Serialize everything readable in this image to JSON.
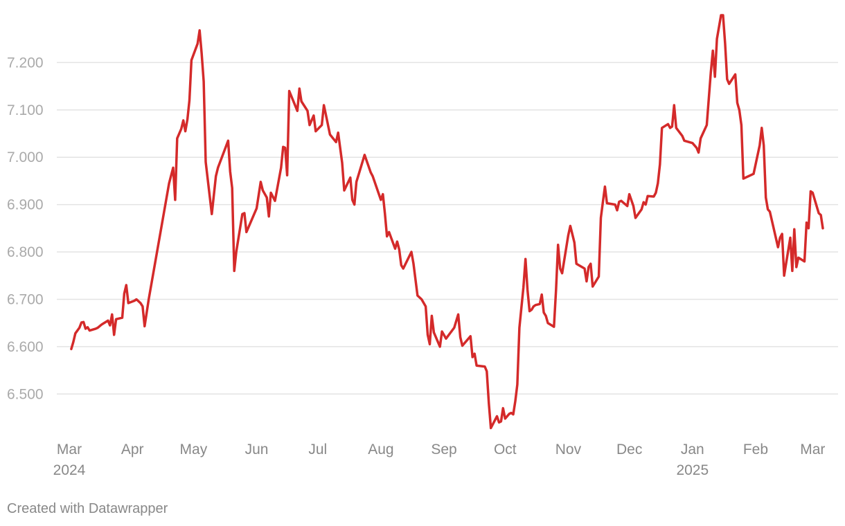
{
  "chart_data": {
    "type": "line",
    "title": "",
    "xlabel": "",
    "ylabel": "",
    "ylim": [
      6.42,
      7.3
    ],
    "yticks": [
      {
        "value": 6.5,
        "label": "6.500"
      },
      {
        "value": 6.6,
        "label": "6.600"
      },
      {
        "value": 6.7,
        "label": "6.700"
      },
      {
        "value": 6.8,
        "label": "6.800"
      },
      {
        "value": 6.9,
        "label": "6.900"
      },
      {
        "value": 7.0,
        "label": "7.000"
      },
      {
        "value": 7.1,
        "label": "7.100"
      },
      {
        "value": 7.2,
        "label": "7.200"
      }
    ],
    "xticks": [
      {
        "date": "2024-03-01",
        "label": "Mar",
        "year": "2024"
      },
      {
        "date": "2024-04-01",
        "label": "Apr",
        "year": ""
      },
      {
        "date": "2024-05-01",
        "label": "May",
        "year": ""
      },
      {
        "date": "2024-06-01",
        "label": "Jun",
        "year": ""
      },
      {
        "date": "2024-07-01",
        "label": "Jul",
        "year": ""
      },
      {
        "date": "2024-08-01",
        "label": "Aug",
        "year": ""
      },
      {
        "date": "2024-09-01",
        "label": "Sep",
        "year": ""
      },
      {
        "date": "2024-10-01",
        "label": "Oct",
        "year": ""
      },
      {
        "date": "2024-11-01",
        "label": "Nov",
        "year": ""
      },
      {
        "date": "2024-12-01",
        "label": "Dec",
        "year": ""
      },
      {
        "date": "2025-01-01",
        "label": "Jan",
        "year": "2025"
      },
      {
        "date": "2025-02-01",
        "label": "Feb",
        "year": ""
      },
      {
        "date": "2025-03-01",
        "label": "Mar",
        "year": ""
      }
    ],
    "grid": true,
    "series": [
      {
        "color": "#d42a2a",
        "points": [
          [
            "2024-03-02",
            6.595
          ],
          [
            "2024-03-03",
            6.61
          ],
          [
            "2024-03-04",
            6.628
          ],
          [
            "2024-03-06",
            6.64
          ],
          [
            "2024-03-07",
            6.651
          ],
          [
            "2024-03-08",
            6.652
          ],
          [
            "2024-03-09",
            6.638
          ],
          [
            "2024-03-10",
            6.641
          ],
          [
            "2024-03-11",
            6.634
          ],
          [
            "2024-03-14",
            6.638
          ],
          [
            "2024-03-15",
            6.64
          ],
          [
            "2024-03-17",
            6.647
          ],
          [
            "2024-03-20",
            6.655
          ],
          [
            "2024-03-21",
            6.645
          ],
          [
            "2024-03-22",
            6.668
          ],
          [
            "2024-03-23",
            6.625
          ],
          [
            "2024-03-24",
            6.658
          ],
          [
            "2024-03-27",
            6.661
          ],
          [
            "2024-03-28",
            6.712
          ],
          [
            "2024-03-29",
            6.73
          ],
          [
            "2024-03-30",
            6.692
          ],
          [
            "2024-04-02",
            6.697
          ],
          [
            "2024-04-03",
            6.7
          ],
          [
            "2024-04-05",
            6.692
          ],
          [
            "2024-04-06",
            6.685
          ],
          [
            "2024-04-07",
            6.643
          ],
          [
            "2024-04-09",
            6.7
          ],
          [
            "2024-04-19",
            6.945
          ],
          [
            "2024-04-21",
            6.978
          ],
          [
            "2024-04-22",
            6.91
          ],
          [
            "2024-04-23",
            7.04
          ],
          [
            "2024-04-25",
            7.06
          ],
          [
            "2024-04-26",
            7.078
          ],
          [
            "2024-04-27",
            7.055
          ],
          [
            "2024-04-28",
            7.08
          ],
          [
            "2024-04-29",
            7.12
          ],
          [
            "2024-04-30",
            7.205
          ],
          [
            "2024-05-03",
            7.24
          ],
          [
            "2024-05-04",
            7.268
          ],
          [
            "2024-05-05",
            7.22
          ],
          [
            "2024-05-06",
            7.16
          ],
          [
            "2024-05-07",
            6.99
          ],
          [
            "2024-05-10",
            6.88
          ],
          [
            "2024-05-12",
            6.96
          ],
          [
            "2024-05-13",
            6.978
          ],
          [
            "2024-05-18",
            7.035
          ],
          [
            "2024-05-19",
            6.97
          ],
          [
            "2024-05-20",
            6.935
          ],
          [
            "2024-05-21",
            6.76
          ],
          [
            "2024-05-22",
            6.8
          ],
          [
            "2024-05-25",
            6.88
          ],
          [
            "2024-05-26",
            6.882
          ],
          [
            "2024-05-27",
            6.842
          ],
          [
            "2024-06-01",
            6.892
          ],
          [
            "2024-06-03",
            6.948
          ],
          [
            "2024-06-04",
            6.93
          ],
          [
            "2024-06-06",
            6.915
          ],
          [
            "2024-06-07",
            6.875
          ],
          [
            "2024-06-08",
            6.925
          ],
          [
            "2024-06-10",
            6.908
          ],
          [
            "2024-06-13",
            6.978
          ],
          [
            "2024-06-14",
            7.022
          ],
          [
            "2024-06-15",
            7.02
          ],
          [
            "2024-06-16",
            6.962
          ],
          [
            "2024-06-17",
            7.14
          ],
          [
            "2024-06-21",
            7.098
          ],
          [
            "2024-06-22",
            7.145
          ],
          [
            "2024-06-23",
            7.118
          ],
          [
            "2024-06-26",
            7.098
          ],
          [
            "2024-06-27",
            7.068
          ],
          [
            "2024-06-28",
            7.078
          ],
          [
            "2024-06-29",
            7.088
          ],
          [
            "2024-06-30",
            7.055
          ],
          [
            "2024-07-03",
            7.068
          ],
          [
            "2024-07-04",
            7.11
          ],
          [
            "2024-07-05",
            7.09
          ],
          [
            "2024-07-07",
            7.048
          ],
          [
            "2024-07-10",
            7.032
          ],
          [
            "2024-07-11",
            7.052
          ],
          [
            "2024-07-13",
            6.988
          ],
          [
            "2024-07-14",
            6.93
          ],
          [
            "2024-07-17",
            6.957
          ],
          [
            "2024-07-18",
            6.91
          ],
          [
            "2024-07-19",
            6.9
          ],
          [
            "2024-07-20",
            6.948
          ],
          [
            "2024-07-24",
            7.005
          ],
          [
            "2024-07-27",
            6.968
          ],
          [
            "2024-07-28",
            6.96
          ],
          [
            "2024-08-01",
            6.91
          ],
          [
            "2024-08-02",
            6.922
          ],
          [
            "2024-08-03",
            6.88
          ],
          [
            "2024-08-04",
            6.833
          ],
          [
            "2024-08-05",
            6.842
          ],
          [
            "2024-08-08",
            6.807
          ],
          [
            "2024-08-09",
            6.822
          ],
          [
            "2024-08-10",
            6.805
          ],
          [
            "2024-08-11",
            6.772
          ],
          [
            "2024-08-12",
            6.765
          ],
          [
            "2024-08-16",
            6.8
          ],
          [
            "2024-08-17",
            6.775
          ],
          [
            "2024-08-19",
            6.708
          ],
          [
            "2024-08-21",
            6.7
          ],
          [
            "2024-08-23",
            6.685
          ],
          [
            "2024-08-24",
            6.625
          ],
          [
            "2024-08-25",
            6.605
          ],
          [
            "2024-08-26",
            6.665
          ],
          [
            "2024-08-27",
            6.63
          ],
          [
            "2024-08-30",
            6.6
          ],
          [
            "2024-08-31",
            6.632
          ],
          [
            "2024-09-02",
            6.617
          ],
          [
            "2024-09-06",
            6.64
          ],
          [
            "2024-09-08",
            6.668
          ],
          [
            "2024-09-09",
            6.62
          ],
          [
            "2024-09-10",
            6.602
          ],
          [
            "2024-09-14",
            6.622
          ],
          [
            "2024-09-15",
            6.578
          ],
          [
            "2024-09-16",
            6.585
          ],
          [
            "2024-09-17",
            6.56
          ],
          [
            "2024-09-21",
            6.558
          ],
          [
            "2024-09-22",
            6.548
          ],
          [
            "2024-09-23",
            6.48
          ],
          [
            "2024-09-24",
            6.428
          ],
          [
            "2024-09-27",
            6.453
          ],
          [
            "2024-09-28",
            6.44
          ],
          [
            "2024-09-29",
            6.442
          ],
          [
            "2024-09-30",
            6.47
          ],
          [
            "2024-10-01",
            6.448
          ],
          [
            "2024-10-03",
            6.458
          ],
          [
            "2024-10-04",
            6.46
          ],
          [
            "2024-10-05",
            6.457
          ],
          [
            "2024-10-06",
            6.485
          ],
          [
            "2024-10-07",
            6.52
          ],
          [
            "2024-10-08",
            6.64
          ],
          [
            "2024-10-10",
            6.725
          ],
          [
            "2024-10-11",
            6.785
          ],
          [
            "2024-10-12",
            6.72
          ],
          [
            "2024-10-13",
            6.675
          ],
          [
            "2024-10-14",
            6.678
          ],
          [
            "2024-10-15",
            6.685
          ],
          [
            "2024-10-16",
            6.688
          ],
          [
            "2024-10-18",
            6.69
          ],
          [
            "2024-10-19",
            6.71
          ],
          [
            "2024-10-20",
            6.672
          ],
          [
            "2024-10-21",
            6.665
          ],
          [
            "2024-10-22",
            6.65
          ],
          [
            "2024-10-25",
            6.642
          ],
          [
            "2024-10-26",
            6.72
          ],
          [
            "2024-10-27",
            6.815
          ],
          [
            "2024-10-28",
            6.765
          ],
          [
            "2024-10-29",
            6.755
          ],
          [
            "2024-11-01",
            6.835
          ],
          [
            "2024-11-02",
            6.855
          ],
          [
            "2024-11-04",
            6.82
          ],
          [
            "2024-11-05",
            6.775
          ],
          [
            "2024-11-09",
            6.765
          ],
          [
            "2024-11-10",
            6.738
          ],
          [
            "2024-11-11",
            6.768
          ],
          [
            "2024-11-12",
            6.775
          ],
          [
            "2024-11-13",
            6.727
          ],
          [
            "2024-11-16",
            6.748
          ],
          [
            "2024-11-17",
            6.872
          ],
          [
            "2024-11-18",
            6.905
          ],
          [
            "2024-11-19",
            6.938
          ],
          [
            "2024-11-20",
            6.903
          ],
          [
            "2024-11-24",
            6.9
          ],
          [
            "2024-11-25",
            6.888
          ],
          [
            "2024-11-26",
            6.906
          ],
          [
            "2024-11-27",
            6.908
          ],
          [
            "2024-11-30",
            6.897
          ],
          [
            "2024-12-01",
            6.922
          ],
          [
            "2024-12-03",
            6.897
          ],
          [
            "2024-12-04",
            6.872
          ],
          [
            "2024-12-07",
            6.89
          ],
          [
            "2024-12-08",
            6.905
          ],
          [
            "2024-12-09",
            6.9
          ],
          [
            "2024-12-10",
            6.918
          ],
          [
            "2024-12-13",
            6.917
          ],
          [
            "2024-12-14",
            6.925
          ],
          [
            "2024-12-15",
            6.945
          ],
          [
            "2024-12-16",
            6.985
          ],
          [
            "2024-12-17",
            7.062
          ],
          [
            "2024-12-20",
            7.07
          ],
          [
            "2024-12-21",
            7.062
          ],
          [
            "2024-12-22",
            7.065
          ],
          [
            "2024-12-23",
            7.11
          ],
          [
            "2024-12-24",
            7.062
          ],
          [
            "2024-12-27",
            7.045
          ],
          [
            "2024-12-28",
            7.035
          ],
          [
            "2025-01-01",
            7.03
          ],
          [
            "2025-01-03",
            7.02
          ],
          [
            "2025-01-04",
            7.01
          ],
          [
            "2025-01-05",
            7.04
          ],
          [
            "2025-01-08",
            7.068
          ],
          [
            "2025-01-10",
            7.18
          ],
          [
            "2025-01-11",
            7.225
          ],
          [
            "2025-01-12",
            7.17
          ],
          [
            "2025-01-13",
            7.25
          ],
          [
            "2025-01-15",
            7.3
          ],
          [
            "2025-01-16",
            7.3
          ],
          [
            "2025-01-17",
            7.24
          ],
          [
            "2025-01-18",
            7.165
          ],
          [
            "2025-01-19",
            7.155
          ],
          [
            "2025-01-22",
            7.175
          ],
          [
            "2025-01-23",
            7.115
          ],
          [
            "2025-01-24",
            7.1
          ],
          [
            "2025-01-25",
            7.068
          ],
          [
            "2025-01-26",
            6.955
          ],
          [
            "2025-01-31",
            6.965
          ],
          [
            "2025-02-03",
            7.025
          ],
          [
            "2025-02-04",
            7.062
          ],
          [
            "2025-02-05",
            7.025
          ],
          [
            "2025-02-06",
            6.915
          ],
          [
            "2025-02-07",
            6.89
          ],
          [
            "2025-02-08",
            6.885
          ],
          [
            "2025-02-12",
            6.81
          ],
          [
            "2025-02-13",
            6.83
          ],
          [
            "2025-02-14",
            6.838
          ],
          [
            "2025-02-15",
            6.75
          ],
          [
            "2025-02-18",
            6.83
          ],
          [
            "2025-02-19",
            6.76
          ],
          [
            "2025-02-20",
            6.848
          ],
          [
            "2025-02-21",
            6.768
          ],
          [
            "2025-02-22",
            6.788
          ],
          [
            "2025-02-25",
            6.78
          ],
          [
            "2025-02-26",
            6.862
          ],
          [
            "2025-02-27",
            6.85
          ],
          [
            "2025-02-28",
            6.928
          ],
          [
            "2025-03-01",
            6.925
          ],
          [
            "2025-03-04",
            6.882
          ],
          [
            "2025-03-05",
            6.878
          ],
          [
            "2025-03-06",
            6.85
          ]
        ]
      }
    ]
  },
  "footer": {
    "credit": "Created with Datawrapper"
  }
}
